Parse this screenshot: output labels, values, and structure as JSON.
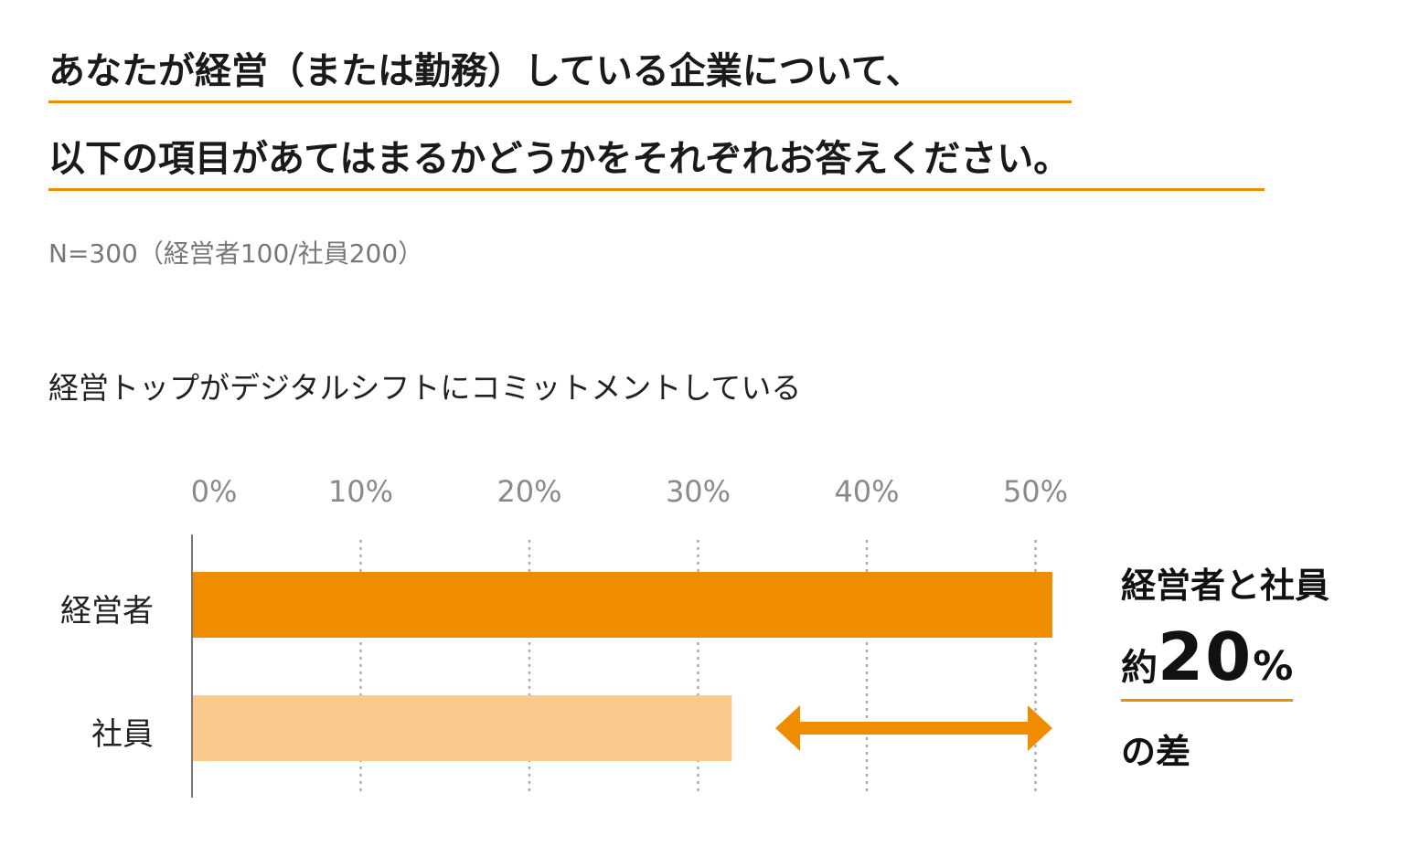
{
  "title_lines": [
    "あなたが経営（または勤務）している企業について、",
    "以下の項目があてはまるかどうかをそれぞれお答えください。"
  ],
  "sample_note": "N=300（経営者100/社員200）",
  "question": "経営トップがデジタルシフトにコミットメントしている",
  "colors": {
    "accent": "#f08c00",
    "executive_bar": "#f08c00",
    "employee_bar": "#f9ca8c",
    "grid": "#aaaaaa"
  },
  "chart_data": {
    "type": "bar",
    "orientation": "horizontal",
    "categories": [
      "経営者",
      "社員"
    ],
    "values": [
      51,
      32
    ],
    "unit": "%",
    "xlim": [
      0,
      50
    ],
    "x_ticks": [
      "0%",
      "10%",
      "20%",
      "30%",
      "40%",
      "50%"
    ],
    "x_tick_values": [
      0,
      10,
      20,
      30,
      40,
      50
    ],
    "grid": true,
    "annotation": {
      "line1": "経営者と社員",
      "prefix": "約",
      "value": "20",
      "unit": "%",
      "suffix": "の差",
      "arrow": "double-headed"
    }
  }
}
